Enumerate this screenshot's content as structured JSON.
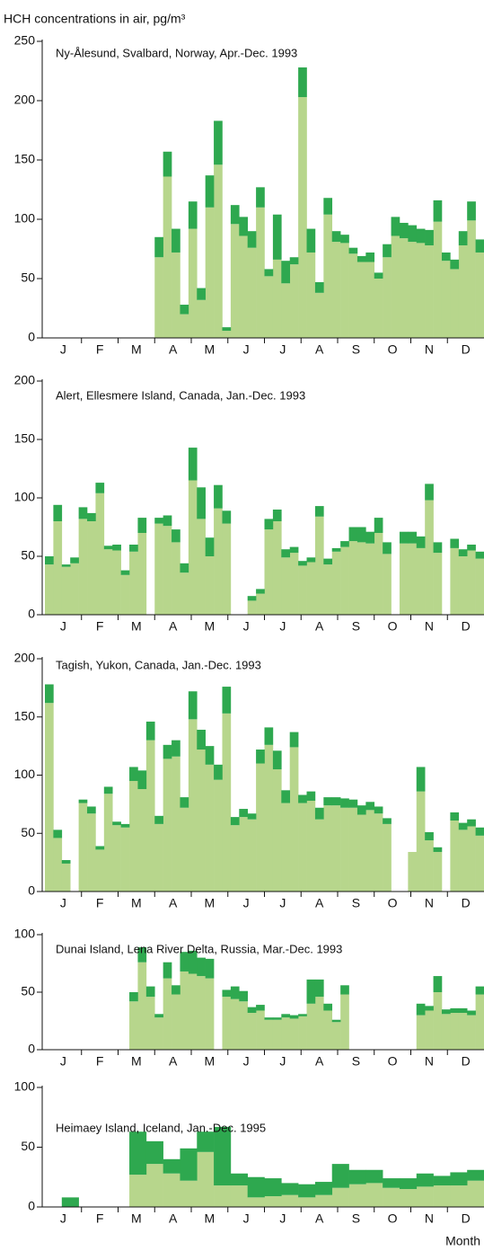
{
  "title": "HCH concentrations in air, pg/m³",
  "xlabel": "Month",
  "chart_data": [
    {
      "type": "bar",
      "stacked": true,
      "title": "Ny-Ålesund, Svalbard, Norway, Apr.-Dec. 1993",
      "month_labels": [
        "J",
        "F",
        "M",
        "A",
        "M",
        "J",
        "J",
        "A",
        "S",
        "O",
        "N",
        "D"
      ],
      "ylim": [
        0,
        250
      ],
      "yticks": [
        0,
        50,
        100,
        150,
        200,
        250
      ],
      "series": [
        {
          "color": "#b7d68c",
          "values": [
            null,
            null,
            null,
            null,
            null,
            null,
            null,
            null,
            null,
            null,
            null,
            null,
            null,
            68,
            136,
            72,
            20,
            92,
            32,
            110,
            146,
            6,
            96,
            86,
            76,
            110,
            52,
            66,
            46,
            62,
            203,
            72,
            38,
            104,
            81,
            80,
            71,
            64,
            64,
            50,
            68,
            86,
            84,
            81,
            80,
            78,
            98,
            65,
            58,
            78,
            99,
            72
          ]
        },
        {
          "color": "#2ea84f",
          "values": [
            null,
            null,
            null,
            null,
            null,
            null,
            null,
            null,
            null,
            null,
            null,
            null,
            null,
            17,
            21,
            20,
            8,
            23,
            10,
            27,
            37,
            3,
            16,
            16,
            14,
            17,
            6,
            38,
            19,
            6,
            25,
            20,
            9,
            14,
            9,
            7,
            5,
            5,
            8,
            5,
            11,
            16,
            13,
            14,
            12,
            13,
            18,
            7,
            8,
            12,
            16,
            11
          ]
        }
      ]
    },
    {
      "type": "bar",
      "stacked": true,
      "title": "Alert, Ellesmere Island, Canada, Jan.-Dec. 1993",
      "month_labels": [
        "J",
        "F",
        "M",
        "A",
        "M",
        "J",
        "J",
        "A",
        "S",
        "O",
        "N",
        "D"
      ],
      "ylim": [
        0,
        200
      ],
      "yticks": [
        0,
        50,
        100,
        150,
        200
      ],
      "series": [
        {
          "color": "#b7d68c",
          "values": [
            43,
            80,
            41,
            44,
            82,
            80,
            104,
            56,
            55,
            34,
            54,
            70,
            null,
            78,
            76,
            62,
            36,
            115,
            82,
            50,
            91,
            78,
            null,
            null,
            12,
            18,
            73,
            80,
            49,
            53,
            42,
            45,
            84,
            43,
            54,
            58,
            63,
            62,
            61,
            70,
            52,
            null,
            61,
            61,
            57,
            98,
            53,
            null,
            57,
            50,
            55,
            48
          ]
        },
        {
          "color": "#2ea84f",
          "values": [
            7,
            14,
            2,
            5,
            10,
            7,
            9,
            3,
            5,
            4,
            6,
            13,
            null,
            5,
            9,
            11,
            8,
            28,
            27,
            16,
            20,
            11,
            null,
            null,
            4,
            4,
            9,
            10,
            7,
            5,
            4,
            4,
            9,
            5,
            3,
            5,
            12,
            13,
            10,
            13,
            10,
            null,
            10,
            10,
            10,
            14,
            9,
            null,
            8,
            6,
            5,
            6
          ]
        }
      ]
    },
    {
      "type": "bar",
      "stacked": true,
      "title": "Tagish, Yukon, Canada, Jan.-Dec. 1993",
      "month_labels": [
        "J",
        "F",
        "M",
        "A",
        "M",
        "J",
        "J",
        "A",
        "S",
        "O",
        "N",
        "D"
      ],
      "ylim": [
        0,
        200
      ],
      "yticks": [
        0,
        50,
        100,
        150,
        200
      ],
      "series": [
        {
          "color": "#b7d68c",
          "values": [
            162,
            46,
            24,
            null,
            76,
            67,
            36,
            84,
            57,
            55,
            95,
            88,
            130,
            58,
            114,
            116,
            72,
            148,
            122,
            109,
            96,
            153,
            57,
            64,
            62,
            110,
            126,
            105,
            76,
            124,
            76,
            78,
            62,
            74,
            74,
            72,
            72,
            66,
            70,
            67,
            58,
            null,
            null,
            34,
            86,
            44,
            34,
            null,
            61,
            53,
            56,
            48
          ]
        },
        {
          "color": "#2ea84f",
          "values": [
            16,
            7,
            3,
            null,
            3,
            6,
            3,
            6,
            3,
            3,
            12,
            16,
            16,
            7,
            12,
            14,
            9,
            24,
            17,
            16,
            13,
            23,
            7,
            7,
            5,
            12,
            15,
            16,
            11,
            13,
            7,
            8,
            10,
            7,
            7,
            8,
            7,
            8,
            7,
            6,
            5,
            null,
            null,
            0,
            21,
            7,
            4,
            null,
            7,
            6,
            6,
            7
          ]
        }
      ]
    },
    {
      "type": "bar",
      "stacked": true,
      "title": "Dunai Island, Lena River Delta, Russia, Mar.-Dec. 1993",
      "month_labels": [
        "J",
        "F",
        "M",
        "A",
        "M",
        "J",
        "J",
        "A",
        "S",
        "O",
        "N",
        "D"
      ],
      "ylim": [
        0,
        100
      ],
      "yticks": [
        0,
        50,
        100
      ],
      "series": [
        {
          "color": "#b7d68c",
          "values": [
            null,
            null,
            null,
            null,
            null,
            null,
            null,
            null,
            null,
            null,
            42,
            76,
            46,
            28,
            62,
            48,
            68,
            66,
            64,
            62,
            null,
            46,
            44,
            42,
            32,
            34,
            26,
            26,
            28,
            27,
            29,
            40,
            46,
            34,
            24,
            48,
            null,
            null,
            null,
            null,
            null,
            null,
            null,
            null,
            30,
            34,
            50,
            31,
            32,
            32,
            30,
            48
          ]
        },
        {
          "color": "#2ea84f",
          "values": [
            null,
            null,
            null,
            null,
            null,
            null,
            null,
            null,
            null,
            null,
            8,
            13,
            9,
            3,
            14,
            8,
            17,
            20,
            16,
            17,
            null,
            6,
            11,
            9,
            5,
            5,
            2,
            2,
            3,
            3,
            2,
            21,
            15,
            6,
            2,
            8,
            null,
            null,
            null,
            null,
            null,
            null,
            null,
            null,
            10,
            4,
            14,
            4,
            4,
            4,
            4,
            7
          ]
        }
      ]
    },
    {
      "type": "bar",
      "stacked": true,
      "title": "Heimaey Island, Iceland, Jan.-Dec. 1995",
      "month_labels": [
        "J",
        "F",
        "M",
        "A",
        "M",
        "J",
        "J",
        "A",
        "S",
        "O",
        "N",
        "D"
      ],
      "ylim": [
        0,
        100
      ],
      "yticks": [
        0,
        50,
        100
      ],
      "series": [
        {
          "color": "#b7d68c",
          "values": [
            null,
            0,
            null,
            null,
            null,
            27,
            36,
            28,
            22,
            46,
            18,
            18,
            8,
            9,
            10,
            8,
            10,
            16,
            19,
            20,
            16,
            15,
            17,
            18,
            18,
            22
          ]
        },
        {
          "color": "#2ea84f",
          "values": [
            null,
            8,
            null,
            null,
            null,
            36,
            19,
            12,
            27,
            17,
            49,
            10,
            17,
            15,
            10,
            11,
            11,
            20,
            12,
            11,
            8,
            9,
            11,
            8,
            11,
            9
          ]
        }
      ]
    }
  ]
}
